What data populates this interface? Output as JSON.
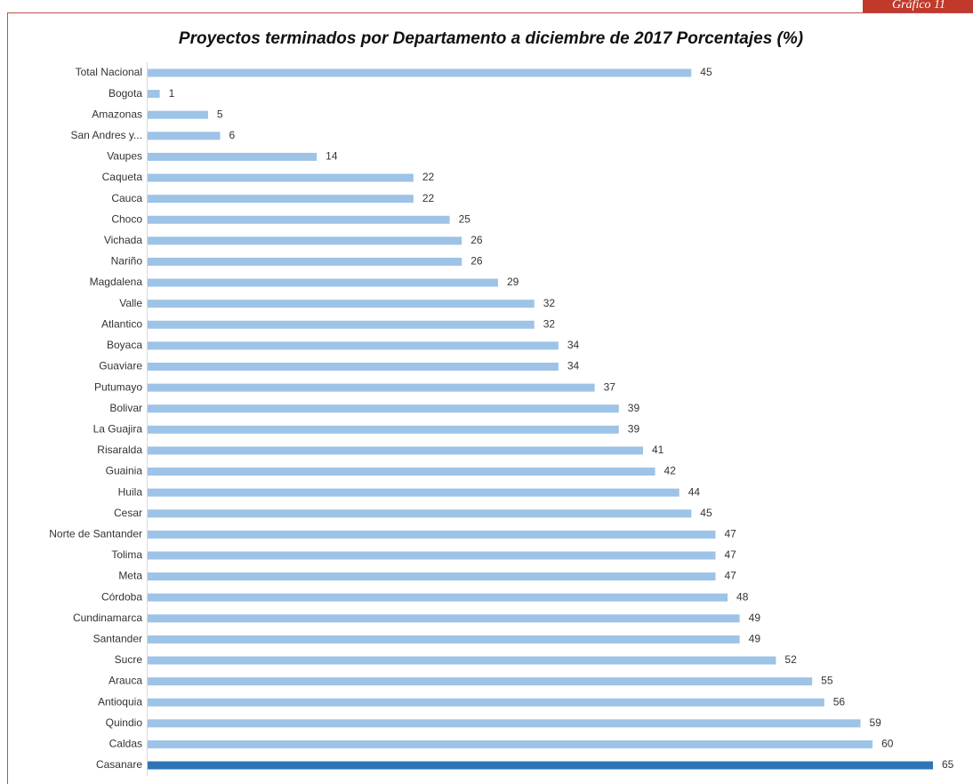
{
  "tab": "Gráfico 11",
  "chart_data": {
    "type": "hbar",
    "title": "Proyectos terminados por Departamento a diciembre de 2017 Porcentajes (%)",
    "categories": [
      "Total Nacional",
      "Bogota",
      "Amazonas",
      "San Andres y...",
      "Vaupes",
      "Caqueta",
      "Cauca",
      "Choco",
      "Vichada",
      "Nariño",
      "Magdalena",
      "Valle",
      "Atlantico",
      "Boyaca",
      "Guaviare",
      "Putumayo",
      "Bolivar",
      "La Guajira",
      "Risaralda",
      "Guainia",
      "Huila",
      "Cesar",
      "Norte de Santander",
      "Tolima",
      "Meta",
      "Córdoba",
      "Cundinamarca",
      "Santander",
      "Sucre",
      "Arauca",
      "Antioquia",
      "Quindio",
      "Caldas",
      "Casanare"
    ],
    "values": [
      45,
      1,
      5,
      6,
      14,
      22,
      22,
      25,
      26,
      26,
      29,
      32,
      32,
      34,
      34,
      37,
      39,
      39,
      41,
      42,
      44,
      45,
      47,
      47,
      47,
      48,
      49,
      49,
      52,
      55,
      56,
      59,
      60,
      65
    ],
    "colors": [
      "#9dc3e6",
      "#9dc3e6",
      "#9dc3e6",
      "#9dc3e6",
      "#9dc3e6",
      "#9dc3e6",
      "#9dc3e6",
      "#9dc3e6",
      "#9dc3e6",
      "#9dc3e6",
      "#9dc3e6",
      "#9dc3e6",
      "#9dc3e6",
      "#9dc3e6",
      "#9dc3e6",
      "#9dc3e6",
      "#9dc3e6",
      "#9dc3e6",
      "#9dc3e6",
      "#9dc3e6",
      "#9dc3e6",
      "#9dc3e6",
      "#9dc3e6",
      "#9dc3e6",
      "#9dc3e6",
      "#9dc3e6",
      "#9dc3e6",
      "#9dc3e6",
      "#9dc3e6",
      "#9dc3e6",
      "#9dc3e6",
      "#9dc3e6",
      "#9dc3e6",
      "#2e75b6"
    ]
  }
}
